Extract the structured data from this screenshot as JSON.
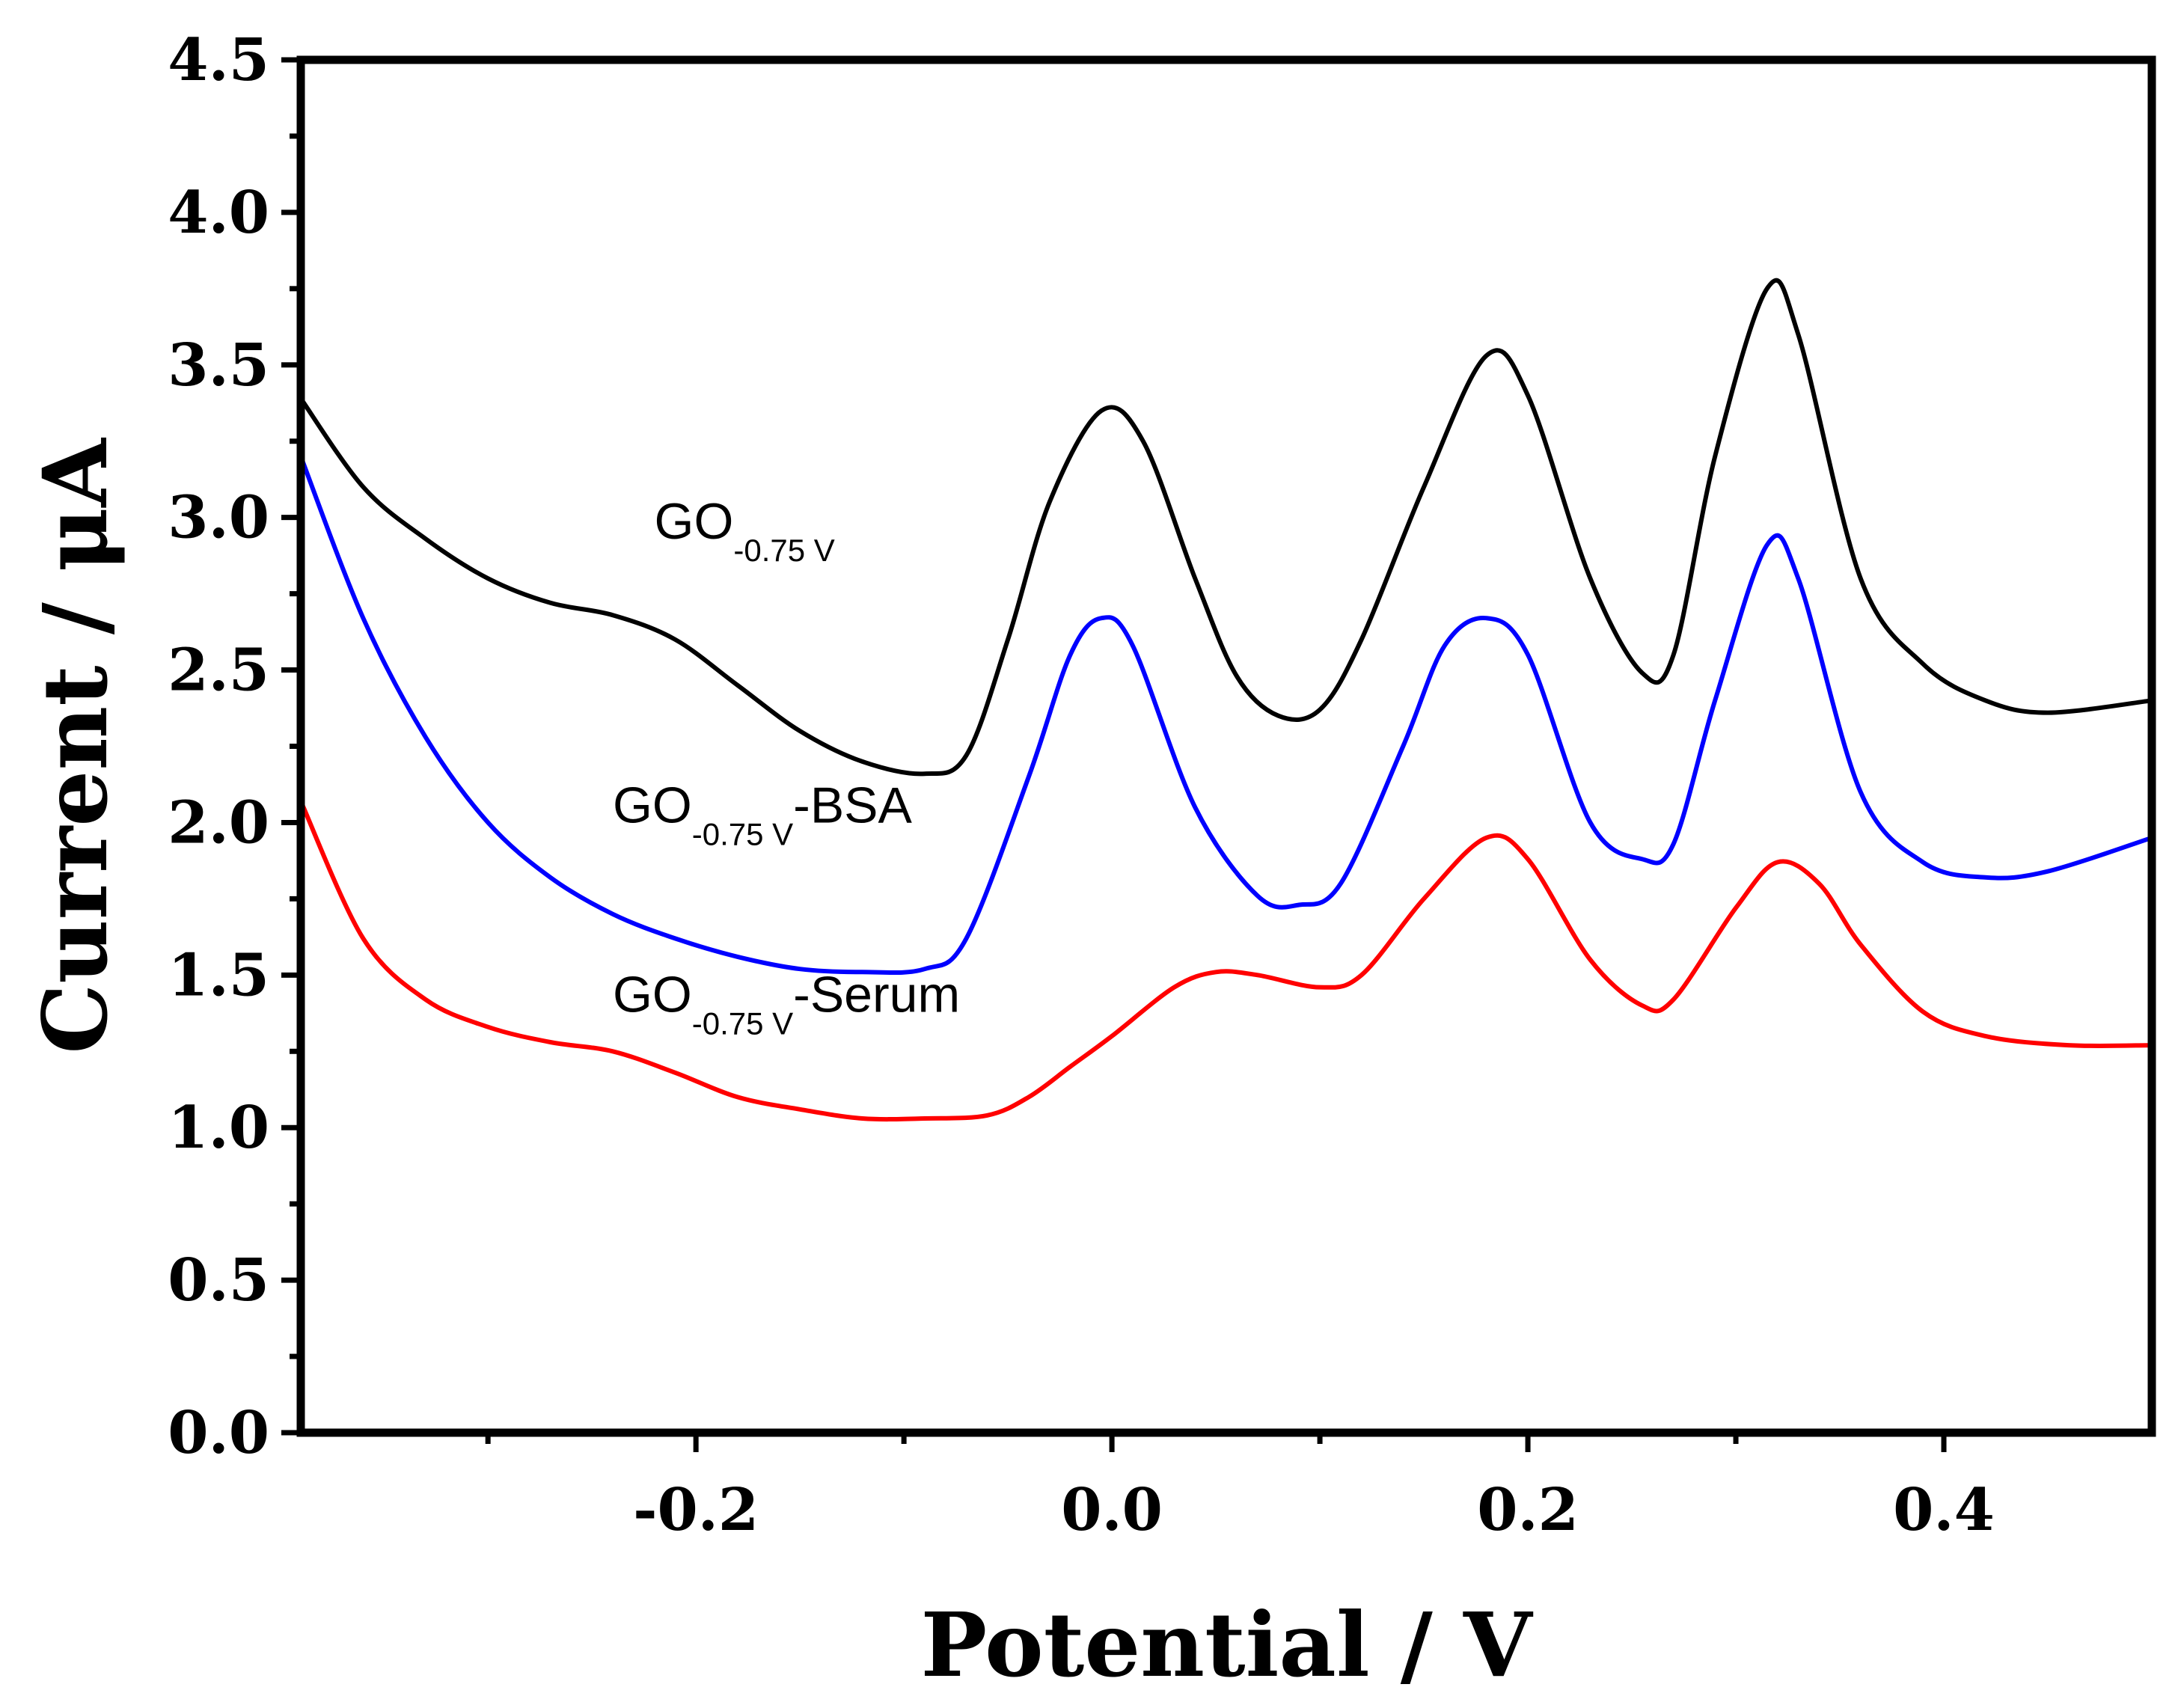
{
  "chart_data": {
    "type": "line",
    "title": "",
    "xlabel": "Potential / V",
    "ylabel": "Current / μA",
    "xlim": [
      -0.39,
      0.5
    ],
    "ylim": [
      0.0,
      4.5
    ],
    "xticks": [
      -0.2,
      0.0,
      0.2,
      0.4
    ],
    "xtick_labels": [
      "-0.2",
      "0.0",
      "0.2",
      "0.4"
    ],
    "yticks": [
      0.0,
      0.5,
      1.0,
      1.5,
      2.0,
      2.5,
      3.0,
      3.5,
      4.0,
      4.5
    ],
    "ytick_labels": [
      "0.0",
      "0.5",
      "1.0",
      "1.5",
      "2.0",
      "2.5",
      "3.0",
      "3.5",
      "4.0",
      "4.5"
    ],
    "grid": false,
    "series": [
      {
        "name": "GO-0.75 V",
        "color": "#000000",
        "points": [
          [
            -0.39,
            3.39
          ],
          [
            -0.36,
            3.1
          ],
          [
            -0.33,
            2.93
          ],
          [
            -0.3,
            2.8
          ],
          [
            -0.27,
            2.72
          ],
          [
            -0.24,
            2.68
          ],
          [
            -0.21,
            2.6
          ],
          [
            -0.18,
            2.45
          ],
          [
            -0.15,
            2.3
          ],
          [
            -0.12,
            2.2
          ],
          [
            -0.09,
            2.16
          ],
          [
            -0.07,
            2.22
          ],
          [
            -0.05,
            2.6
          ],
          [
            -0.03,
            3.05
          ],
          [
            -0.005,
            3.35
          ],
          [
            0.015,
            3.25
          ],
          [
            0.04,
            2.8
          ],
          [
            0.06,
            2.48
          ],
          [
            0.08,
            2.35
          ],
          [
            0.1,
            2.37
          ],
          [
            0.12,
            2.6
          ],
          [
            0.15,
            3.1
          ],
          [
            0.18,
            3.53
          ],
          [
            0.2,
            3.4
          ],
          [
            0.23,
            2.8
          ],
          [
            0.255,
            2.49
          ],
          [
            0.27,
            2.55
          ],
          [
            0.29,
            3.2
          ],
          [
            0.315,
            3.75
          ],
          [
            0.33,
            3.6
          ],
          [
            0.36,
            2.8
          ],
          [
            0.39,
            2.52
          ],
          [
            0.42,
            2.4
          ],
          [
            0.45,
            2.36
          ],
          [
            0.5,
            2.4
          ]
        ]
      },
      {
        "name": "GO-0.75 V-BSA",
        "color": "#0000ff",
        "points": [
          [
            -0.39,
            3.2
          ],
          [
            -0.36,
            2.67
          ],
          [
            -0.33,
            2.28
          ],
          [
            -0.3,
            2.0
          ],
          [
            -0.27,
            1.82
          ],
          [
            -0.24,
            1.7
          ],
          [
            -0.21,
            1.62
          ],
          [
            -0.18,
            1.56
          ],
          [
            -0.15,
            1.52
          ],
          [
            -0.12,
            1.51
          ],
          [
            -0.09,
            1.52
          ],
          [
            -0.07,
            1.62
          ],
          [
            -0.04,
            2.15
          ],
          [
            -0.02,
            2.55
          ],
          [
            -0.005,
            2.67
          ],
          [
            0.01,
            2.58
          ],
          [
            0.04,
            2.05
          ],
          [
            0.07,
            1.76
          ],
          [
            0.09,
            1.73
          ],
          [
            0.11,
            1.8
          ],
          [
            0.14,
            2.25
          ],
          [
            0.16,
            2.58
          ],
          [
            0.18,
            2.67
          ],
          [
            0.2,
            2.55
          ],
          [
            0.23,
            2.0
          ],
          [
            0.255,
            1.88
          ],
          [
            0.27,
            1.93
          ],
          [
            0.29,
            2.4
          ],
          [
            0.315,
            2.91
          ],
          [
            0.33,
            2.8
          ],
          [
            0.36,
            2.1
          ],
          [
            0.39,
            1.87
          ],
          [
            0.42,
            1.82
          ],
          [
            0.45,
            1.84
          ],
          [
            0.5,
            1.95
          ]
        ]
      },
      {
        "name": "GO-0.75 V-Serum",
        "color": "#ff0000",
        "points": [
          [
            -0.39,
            2.07
          ],
          [
            -0.36,
            1.62
          ],
          [
            -0.33,
            1.42
          ],
          [
            -0.3,
            1.33
          ],
          [
            -0.27,
            1.28
          ],
          [
            -0.24,
            1.25
          ],
          [
            -0.21,
            1.18
          ],
          [
            -0.18,
            1.1
          ],
          [
            -0.15,
            1.06
          ],
          [
            -0.12,
            1.03
          ],
          [
            -0.09,
            1.03
          ],
          [
            -0.06,
            1.04
          ],
          [
            -0.04,
            1.1
          ],
          [
            -0.02,
            1.2
          ],
          [
            0.0,
            1.3
          ],
          [
            0.03,
            1.46
          ],
          [
            0.05,
            1.51
          ],
          [
            0.07,
            1.5
          ],
          [
            0.1,
            1.46
          ],
          [
            0.12,
            1.5
          ],
          [
            0.15,
            1.75
          ],
          [
            0.18,
            1.95
          ],
          [
            0.2,
            1.88
          ],
          [
            0.23,
            1.55
          ],
          [
            0.255,
            1.4
          ],
          [
            0.27,
            1.42
          ],
          [
            0.3,
            1.72
          ],
          [
            0.32,
            1.87
          ],
          [
            0.34,
            1.8
          ],
          [
            0.36,
            1.6
          ],
          [
            0.39,
            1.38
          ],
          [
            0.42,
            1.3
          ],
          [
            0.46,
            1.27
          ],
          [
            0.5,
            1.27
          ]
        ]
      }
    ],
    "annotations": [
      {
        "main": "GO",
        "sub": "-0.75 V",
        "suffix": "",
        "at": [
          -0.22,
          2.93
        ]
      },
      {
        "main": "GO",
        "sub": "-0.75 V",
        "suffix": "-BSA",
        "at": [
          -0.24,
          2.0
        ]
      },
      {
        "main": "GO",
        "sub": "-0.75 V",
        "suffix": "-Serum",
        "at": [
          -0.24,
          1.38
        ]
      }
    ]
  }
}
